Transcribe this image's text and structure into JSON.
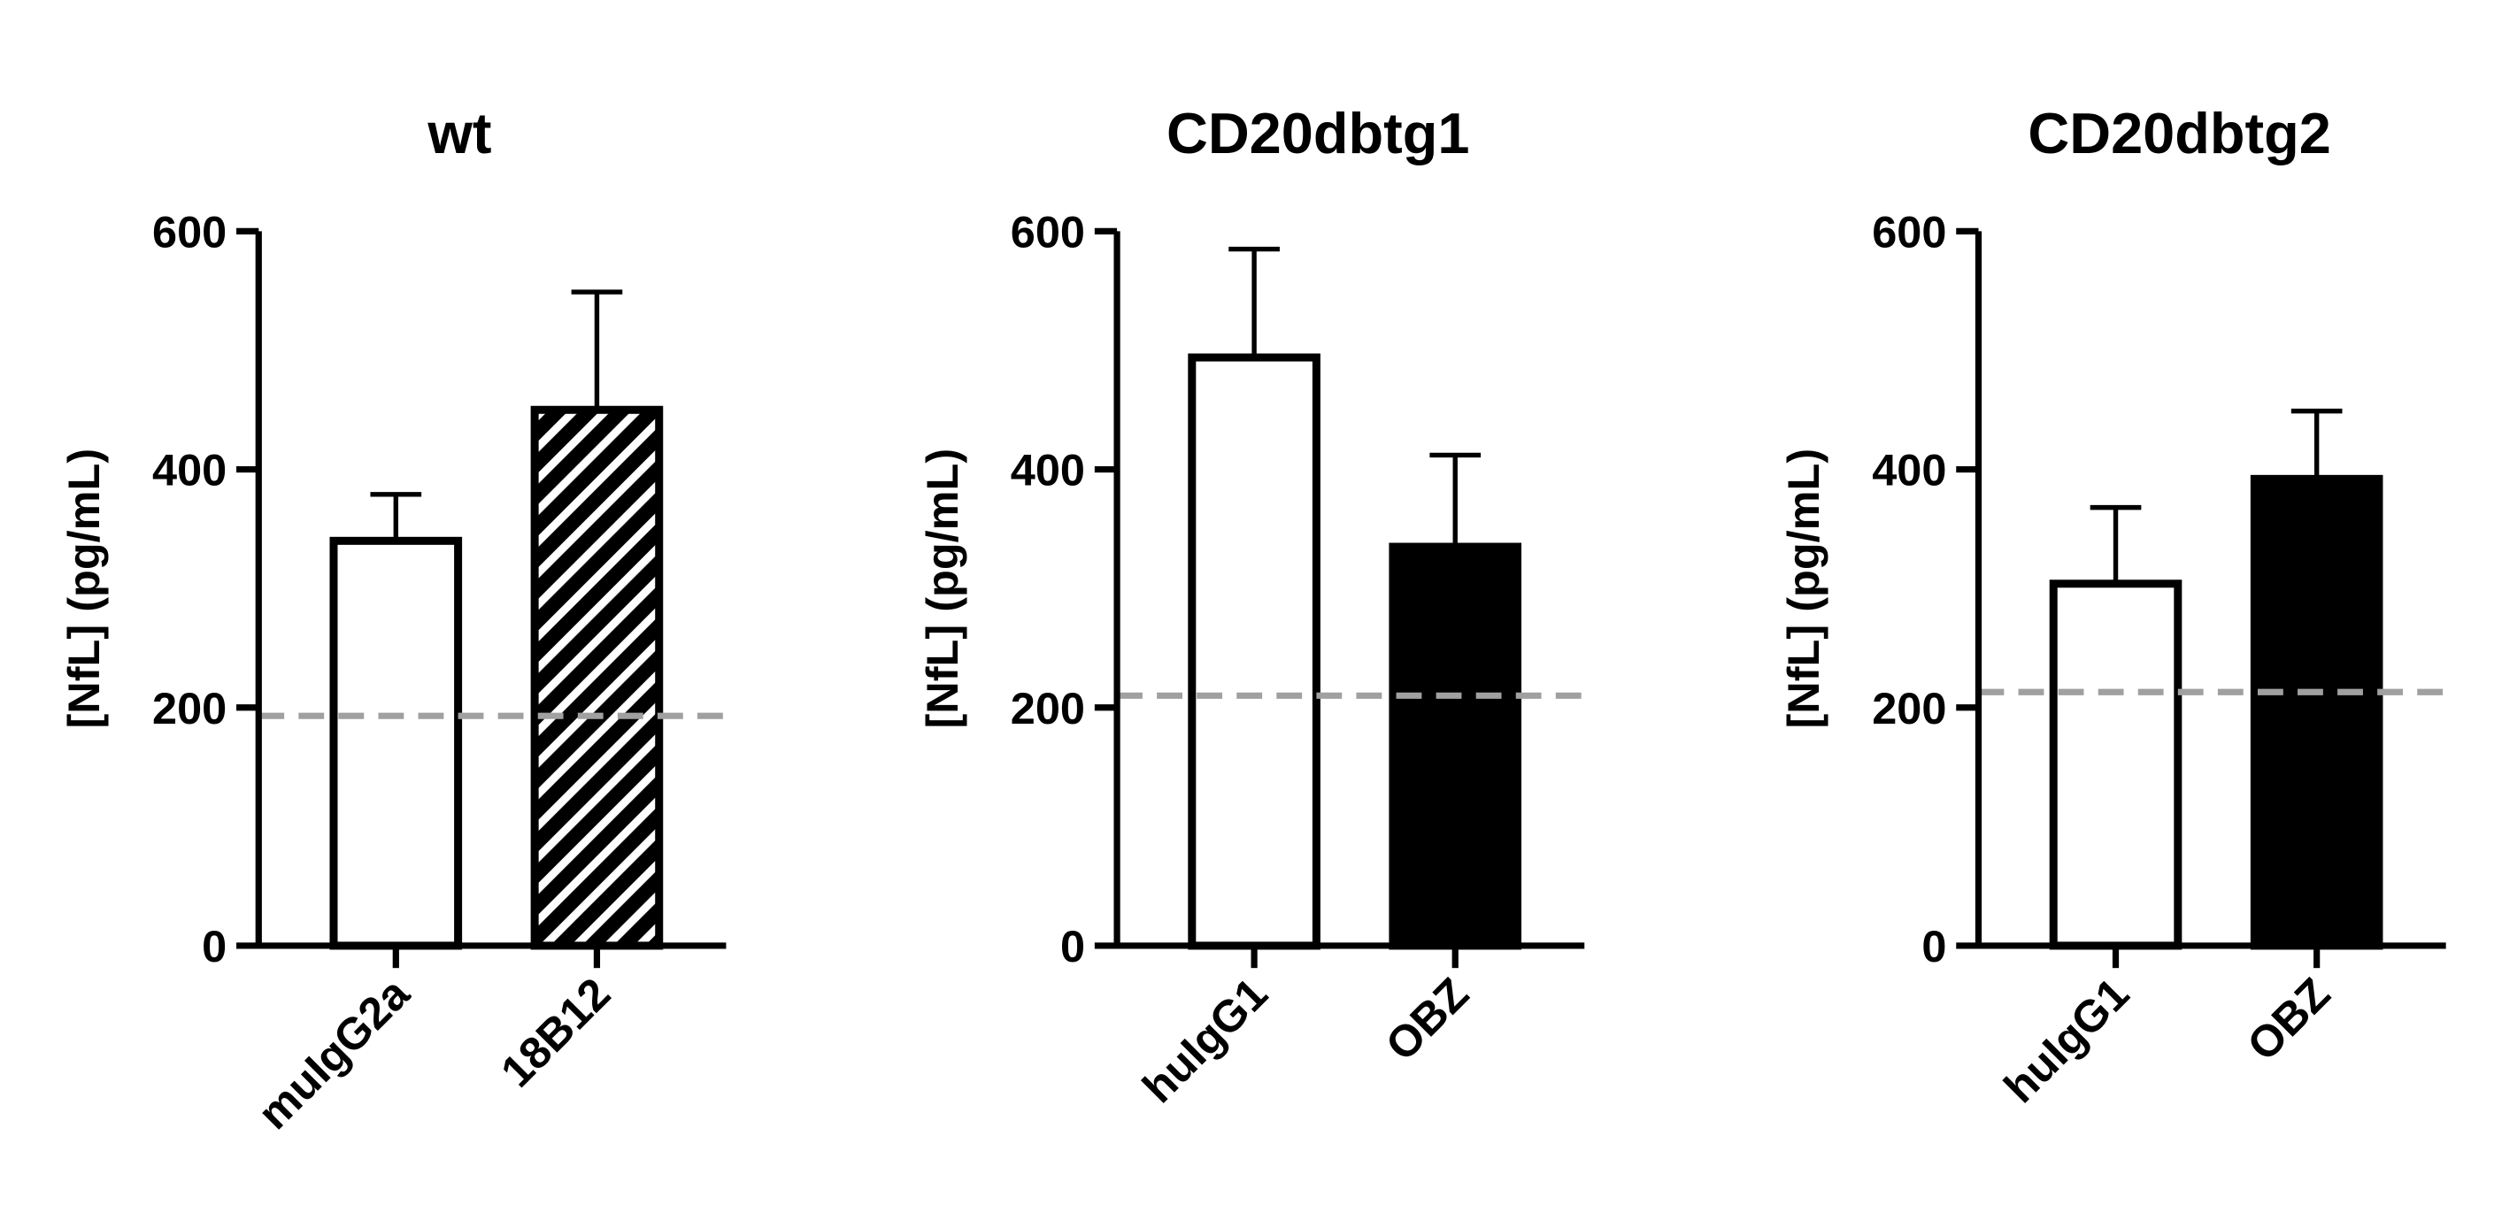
{
  "chart_data": [
    {
      "type": "bar",
      "title": "wt",
      "y_label": "[NfL] (pg/mL)",
      "categories": [
        "muIgG2a",
        "18B12"
      ],
      "values": [
        340,
        450
      ],
      "errors": [
        39,
        99
      ],
      "fills": [
        "open",
        "hatched"
      ],
      "baseline": 193,
      "ylim": [
        0,
        600
      ],
      "yticks": [
        0,
        200,
        400,
        600
      ]
    },
    {
      "type": "bar",
      "title": "CD20dbtg1",
      "y_label": "[NfL] (pg/mL)",
      "categories": [
        "huIgG1",
        "OBZ"
      ],
      "values": [
        494,
        335
      ],
      "errors": [
        91,
        77
      ],
      "fills": [
        "open",
        "solid"
      ],
      "baseline": 210,
      "ylim": [
        0,
        600
      ],
      "yticks": [
        0,
        200,
        400,
        600
      ]
    },
    {
      "type": "bar",
      "title": "CD20dbtg2",
      "y_label": "[NfL] (pg/mL)",
      "categories": [
        "huIgG1",
        "OBZ"
      ],
      "values": [
        304,
        392
      ],
      "errors": [
        64,
        57
      ],
      "fills": [
        "open",
        "solid"
      ],
      "baseline": 213,
      "ylim": [
        0,
        600
      ],
      "yticks": [
        0,
        200,
        400,
        600
      ]
    }
  ]
}
